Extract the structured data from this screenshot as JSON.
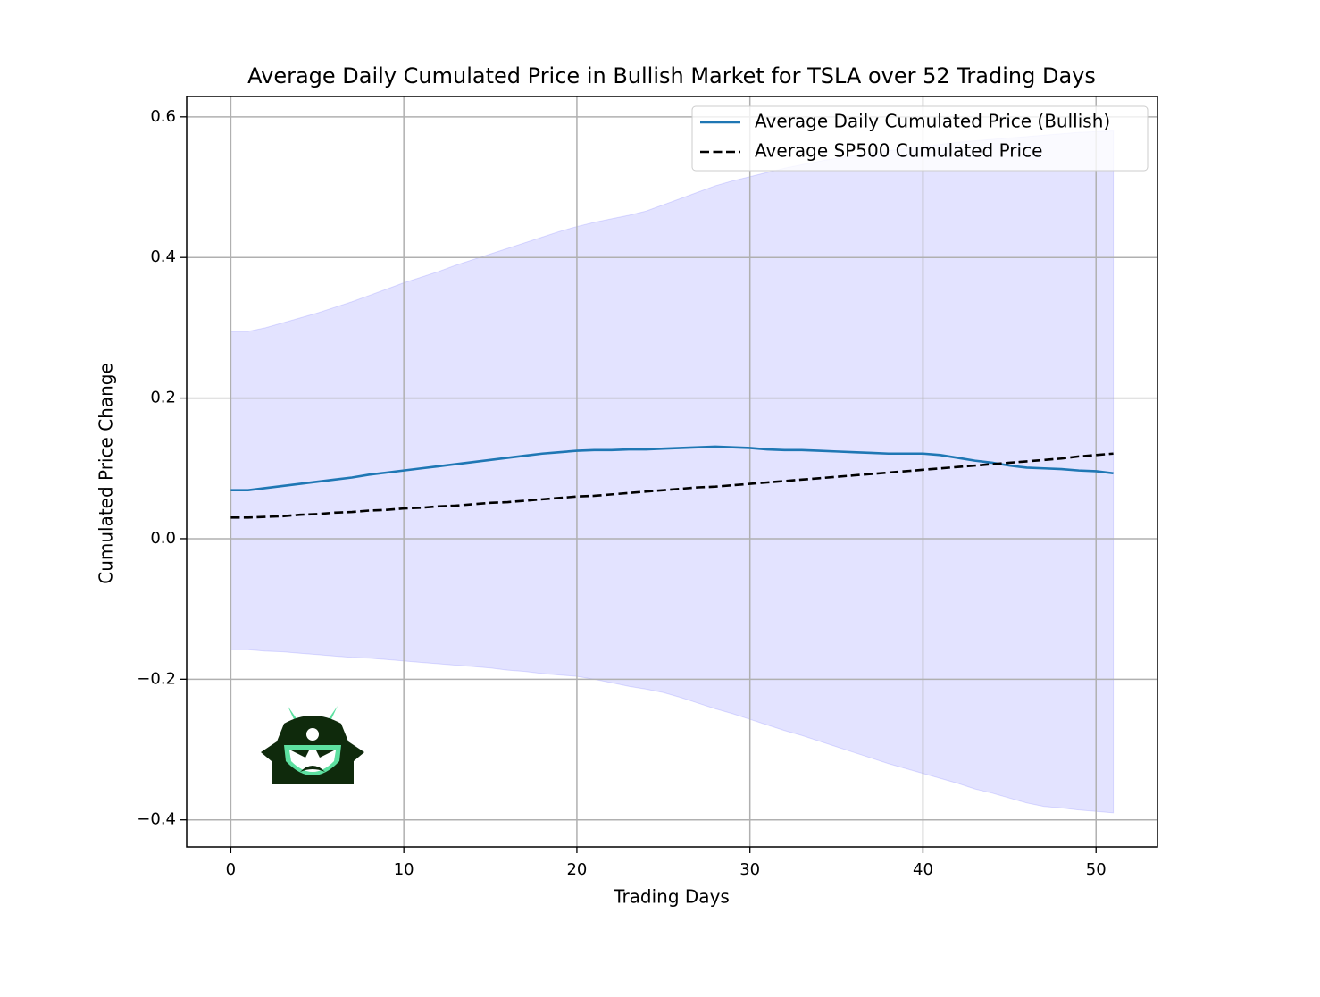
{
  "chart_data": {
    "type": "line",
    "title": "Average Daily Cumulated Price in Bullish Market for TSLA over 52 Trading Days",
    "xlabel": "Trading Days",
    "ylabel": "Cumulated Price Change",
    "x": [
      0,
      1,
      2,
      3,
      4,
      5,
      6,
      7,
      8,
      9,
      10,
      11,
      12,
      13,
      14,
      15,
      16,
      17,
      18,
      19,
      20,
      21,
      22,
      23,
      24,
      25,
      26,
      27,
      28,
      29,
      30,
      31,
      32,
      33,
      34,
      35,
      36,
      37,
      38,
      39,
      40,
      41,
      42,
      43,
      44,
      45,
      46,
      47,
      48,
      49,
      50,
      51
    ],
    "series": [
      {
        "name": "Average Daily Cumulated Price (Bullish)",
        "color": "#1f77b4",
        "dash": false,
        "values": [
          0.069,
          0.069,
          0.072,
          0.075,
          0.078,
          0.081,
          0.084,
          0.087,
          0.091,
          0.094,
          0.097,
          0.1,
          0.103,
          0.106,
          0.109,
          0.112,
          0.115,
          0.118,
          0.121,
          0.123,
          0.125,
          0.126,
          0.126,
          0.127,
          0.127,
          0.128,
          0.129,
          0.13,
          0.131,
          0.13,
          0.129,
          0.127,
          0.126,
          0.126,
          0.125,
          0.124,
          0.123,
          0.122,
          0.121,
          0.121,
          0.121,
          0.119,
          0.115,
          0.111,
          0.108,
          0.104,
          0.101,
          0.1,
          0.099,
          0.097,
          0.096,
          0.093
        ]
      },
      {
        "name": "Average SP500 Cumulated Price",
        "color": "#000000",
        "dash": true,
        "values": [
          0.03,
          0.03,
          0.031,
          0.032,
          0.034,
          0.035,
          0.037,
          0.038,
          0.04,
          0.041,
          0.043,
          0.044,
          0.046,
          0.047,
          0.049,
          0.051,
          0.052,
          0.054,
          0.056,
          0.058,
          0.06,
          0.061,
          0.063,
          0.065,
          0.067,
          0.069,
          0.071,
          0.073,
          0.074,
          0.076,
          0.078,
          0.08,
          0.082,
          0.084,
          0.086,
          0.088,
          0.09,
          0.092,
          0.094,
          0.096,
          0.098,
          0.1,
          0.102,
          0.104,
          0.106,
          0.108,
          0.11,
          0.112,
          0.114,
          0.117,
          0.119,
          0.121
        ]
      }
    ],
    "band": {
      "color": "#0000ff",
      "upper": [
        0.295,
        0.295,
        0.3,
        0.307,
        0.314,
        0.321,
        0.329,
        0.337,
        0.346,
        0.355,
        0.364,
        0.372,
        0.38,
        0.389,
        0.397,
        0.405,
        0.413,
        0.421,
        0.429,
        0.437,
        0.444,
        0.45,
        0.455,
        0.46,
        0.466,
        0.475,
        0.484,
        0.493,
        0.502,
        0.509,
        0.515,
        0.521,
        0.527,
        0.532,
        0.537,
        0.541,
        0.545,
        0.549,
        0.552,
        0.555,
        0.558,
        0.561,
        0.564,
        0.566,
        0.568,
        0.57,
        0.572,
        0.574,
        0.576,
        0.578,
        0.579,
        0.58
      ],
      "lower": [
        -0.158,
        -0.158,
        -0.16,
        -0.161,
        -0.163,
        -0.165,
        -0.167,
        -0.169,
        -0.17,
        -0.172,
        -0.174,
        -0.176,
        -0.178,
        -0.18,
        -0.182,
        -0.184,
        -0.187,
        -0.189,
        -0.192,
        -0.194,
        -0.196,
        -0.2,
        -0.205,
        -0.21,
        -0.214,
        -0.219,
        -0.226,
        -0.234,
        -0.242,
        -0.249,
        -0.257,
        -0.265,
        -0.273,
        -0.28,
        -0.288,
        -0.296,
        -0.304,
        -0.312,
        -0.32,
        -0.327,
        -0.334,
        -0.341,
        -0.348,
        -0.356,
        -0.362,
        -0.369,
        -0.376,
        -0.381,
        -0.383,
        -0.386,
        -0.388,
        -0.39
      ]
    },
    "xlim": [
      -2.55,
      53.55
    ],
    "ylim": [
      -0.4385,
      0.629
    ],
    "xticks": [
      0,
      10,
      20,
      30,
      40,
      50
    ],
    "yticks": [
      {
        "value": -0.4,
        "label": "−0.4"
      },
      {
        "value": -0.2,
        "label": "−0.2"
      },
      {
        "value": 0,
        "label": "0.0"
      },
      0.2,
      0.4,
      0.6
    ],
    "grid": true,
    "legend": "upper right"
  }
}
